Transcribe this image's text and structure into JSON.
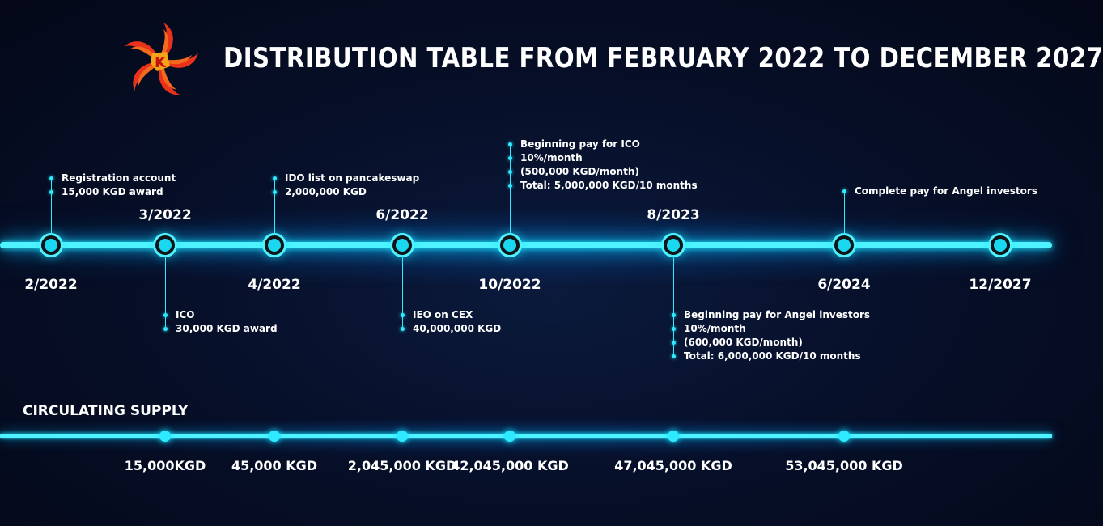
{
  "title": "DISTRIBUTION TABLE FROM FEBRUARY 2022 TO DECEMBER 2027",
  "logo": {
    "icon": "pinwheel-star-logo",
    "letter": "K",
    "colors": [
      "#e8321c",
      "#f7a31a"
    ]
  },
  "accent_color": "#2ee9ff",
  "timeline": [
    {
      "date": "2/2022",
      "date_pos": "below",
      "note_pos": "above",
      "note": [
        "Registration account",
        "15,000 KGD award"
      ]
    },
    {
      "date": "3/2022",
      "date_pos": "above",
      "note_pos": "below",
      "note": [
        "ICO",
        "30,000 KGD award"
      ]
    },
    {
      "date": "4/2022",
      "date_pos": "below",
      "note_pos": "above",
      "note": [
        "IDO list on pancakeswap",
        "2,000,000 KGD"
      ]
    },
    {
      "date": "6/2022",
      "date_pos": "above",
      "note_pos": "below",
      "note": [
        "IEO on CEX",
        "40,000,000 KGD"
      ]
    },
    {
      "date": "10/2022",
      "date_pos": "below",
      "note_pos": "above",
      "note": [
        "Beginning pay for ICO",
        "10%/month",
        "(500,000 KGD/month)",
        "Total: 5,000,000 KGD/10 months"
      ]
    },
    {
      "date": "8/2023",
      "date_pos": "above",
      "note_pos": "below",
      "note": [
        "Beginning pay for Angel investors",
        "10%/month",
        "(600,000 KGD/month)",
        "Total: 6,000,000 KGD/10 months"
      ]
    },
    {
      "date": "6/2024",
      "date_pos": "below",
      "note_pos": "above",
      "note": [
        "Complete pay for Angel investors"
      ]
    },
    {
      "date": "12/2027",
      "date_pos": "below",
      "note_pos": "none",
      "note": []
    }
  ],
  "supply": {
    "label": "CIRCULATING SUPPLY",
    "values": [
      "15,000KGD",
      "45,000 KGD",
      "2,045,000 KGD",
      "42,045,000 KGD",
      "47,045,000 KGD",
      "53,045,000 KGD"
    ]
  }
}
